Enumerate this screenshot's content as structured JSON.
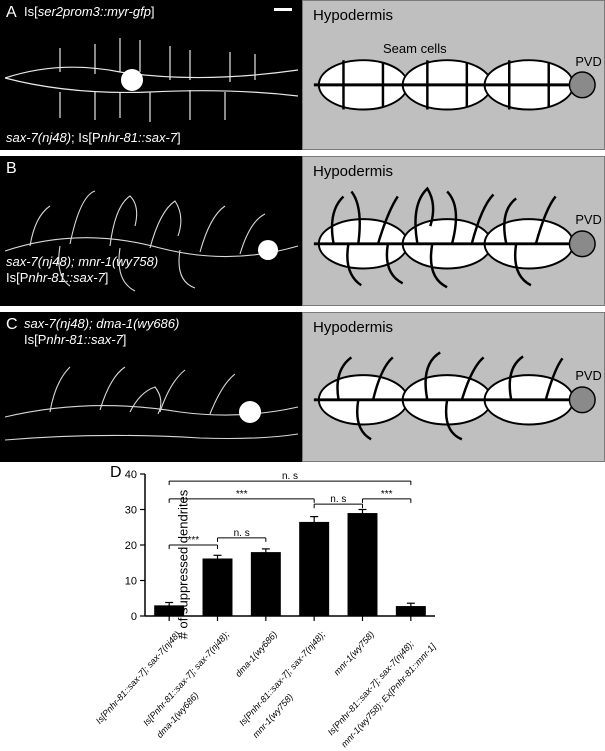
{
  "panels": {
    "A": {
      "letter": "A",
      "top_label": "Is[ser2prom3::myr-gfp]",
      "bottom_label": "sax-7(nj48); Is[Pnhr-81::sax-7]",
      "diagram": {
        "hypodermis": "Hypodermis",
        "seam": "Seam cells",
        "pvd": "PVD",
        "type": "ordered"
      }
    },
    "B": {
      "letter": "B",
      "bottom_label_line1": "sax-7(nj48); mnr-1(wy758)",
      "bottom_label_line2": "Is[Pnhr-81::sax-7]",
      "diagram": {
        "hypodermis": "Hypodermis",
        "pvd": "PVD",
        "type": "disordered_heavy"
      }
    },
    "C": {
      "letter": "C",
      "top_label_line1": "sax-7(nj48); dma-1(wy686)",
      "top_label_line2": "Is[Pnhr-81::sax-7]",
      "diagram": {
        "hypodermis": "Hypodermis",
        "pvd": "PVD",
        "type": "disordered_light"
      }
    }
  },
  "chart": {
    "letter": "D",
    "type": "bar",
    "ylabel": "# of suppressed dendrites",
    "ylim": [
      0,
      40
    ],
    "ytick_step": 10,
    "yticks": [
      0,
      10,
      20,
      30,
      40
    ],
    "bar_fill": "#000000",
    "err_color": "#000000",
    "axis_color": "#000000",
    "background": "#ffffff",
    "bar_width": 0.62,
    "categories": [
      "Is[Pnhr-81::sax-7]; sax-7(nj48)",
      "Is[Pnhr-81::sax-7]; sax-7(nj48);\ndma-1(wy686)",
      "dma-1(wy686)",
      "Is[Pnhr-81::sax-7]; sax-7(nj48);\nmnr-1(wy758)",
      "mnr-1(wy758)",
      "Is[Pnhr-81::sax-7]; sax-7(nj48);\nmnr-1(wy758); Ex[Pnhr-81::mnr-1]"
    ],
    "values": [
      3.0,
      16.2,
      18.0,
      26.5,
      29.0,
      2.8
    ],
    "errors": [
      0.8,
      0.9,
      0.9,
      1.5,
      1.0,
      0.8
    ],
    "sig": [
      {
        "from": 0,
        "to": 1,
        "label": "***",
        "y": 20
      },
      {
        "from": 1,
        "to": 2,
        "label": "n. s",
        "y": 22
      },
      {
        "from": 0,
        "to": 3,
        "label": "***",
        "y": 33
      },
      {
        "from": 3,
        "to": 4,
        "label": "n. s",
        "y": 31.5
      },
      {
        "from": 4,
        "to": 5,
        "label": "***",
        "y": 33
      },
      {
        "from": 0,
        "to": 5,
        "label": "n. s",
        "y": 38
      }
    ],
    "label_fontsize": 9,
    "title_fontsize": 13
  },
  "colors": {
    "micrograph_bg": "#000000",
    "micrograph_fg": "#ffffff",
    "diagram_bg": "#bfbfbf",
    "diagram_border": "#7a7a7a",
    "seam_fill": "#ffffff",
    "seam_stroke": "#000000",
    "pvd_fill": "#8a8a8a"
  }
}
